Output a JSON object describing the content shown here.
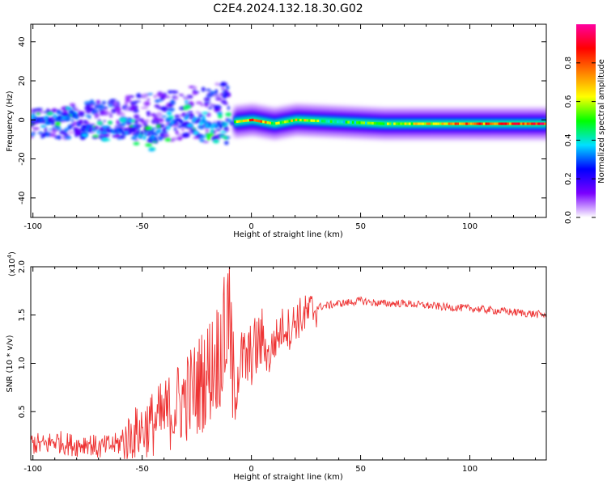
{
  "title": "C2E4.2024.132.18.30.G02",
  "chart_data": [
    {
      "type": "heatmap",
      "xlabel": "Height of straight line (km)",
      "ylabel": "Frequency (Hz)",
      "xlim": [
        -101,
        135
      ],
      "ylim": [
        -50,
        49
      ],
      "x_ticks": [
        -100,
        -50,
        0,
        50,
        100
      ],
      "y_ticks": [
        40,
        20,
        0,
        -20,
        -40
      ],
      "colorbar": {
        "label": "Normalized spectral amplitude",
        "range": [
          0.0,
          1.0
        ],
        "ticks": [
          0.0,
          0.2,
          0.4,
          0.6,
          0.8
        ],
        "tick_labels": [
          "0.0",
          "0.2",
          "0.4",
          "0.6",
          "0.8"
        ],
        "colors": [
          "#ffffff",
          "#7a00ff",
          "#0000ff",
          "#00e0ff",
          "#00ff00",
          "#ffff00",
          "#ff8000",
          "#ff0000",
          "#ff00a0"
        ]
      },
      "features": {
        "main_trace": [
          {
            "x": -101,
            "y": 0,
            "amp": 0.25
          },
          {
            "x": -92,
            "y": 0,
            "amp": 0.3
          },
          {
            "x": -82,
            "y": 3,
            "amp": 0.3
          },
          {
            "x": -75,
            "y": -6,
            "amp": 0.35
          },
          {
            "x": -60,
            "y": -5,
            "amp": 0.35
          },
          {
            "x": -45,
            "y": -9,
            "amp": 0.3
          },
          {
            "x": -30,
            "y": 2,
            "amp": 0.3
          },
          {
            "x": -18,
            "y": -3,
            "amp": 0.35
          },
          {
            "x": -8,
            "y": -1,
            "amp": 0.5
          },
          {
            "x": 0,
            "y": 0,
            "amp": 0.8
          },
          {
            "x": 10,
            "y": -2,
            "amp": 0.55
          },
          {
            "x": 20,
            "y": 0,
            "amp": 0.6
          },
          {
            "x": 40,
            "y": -1,
            "amp": 0.45
          },
          {
            "x": 60,
            "y": -2,
            "amp": 0.5
          },
          {
            "x": 80,
            "y": -2,
            "amp": 0.65
          },
          {
            "x": 100,
            "y": -2,
            "amp": 0.75
          },
          {
            "x": 120,
            "y": -2,
            "amp": 0.8
          },
          {
            "x": 135,
            "y": -2,
            "amp": 0.85
          }
        ],
        "scatter_region": {
          "x_range": [
            -101,
            -10
          ],
          "y_range": [
            -18,
            22
          ]
        }
      }
    },
    {
      "type": "line",
      "xlabel": "Height of straight line (km)",
      "ylabel": "SNR (10 * v/v)",
      "y_multiplier": "(x10",
      "y_multiplier_exp": "4",
      "y_multiplier_close": ")",
      "xlim": [
        -101,
        135
      ],
      "ylim": [
        0,
        2.0
      ],
      "x_ticks": [
        -100,
        -50,
        0,
        50,
        100
      ],
      "y_ticks": [
        0.5,
        1.0,
        1.5,
        2.0
      ],
      "y_tick_labels": [
        "0.5",
        "1.0",
        "1.5",
        "2.0"
      ],
      "color": "#ee3333",
      "series": [
        {
          "x": [
            -101,
            -95,
            -90,
            -85,
            -80,
            -75,
            -70,
            -65,
            -60,
            -55,
            -50,
            -45,
            -40,
            -35,
            -30,
            -25,
            -20,
            -15,
            -12,
            -10,
            -8,
            -6,
            -4,
            -2,
            0,
            2,
            5,
            8,
            10,
            12,
            15,
            18,
            20,
            25,
            30,
            35,
            40,
            45,
            50,
            55,
            60,
            70,
            80,
            90,
            100,
            110,
            120,
            130,
            135
          ],
          "y": [
            0.18,
            0.15,
            0.2,
            0.17,
            0.15,
            0.18,
            0.12,
            0.15,
            0.17,
            0.25,
            0.32,
            0.38,
            0.45,
            0.55,
            0.65,
            0.75,
            0.9,
            1.1,
            1.3,
            1.45,
            0.6,
            0.95,
            1.05,
            1.0,
            1.1,
            1.15,
            1.25,
            1.05,
            1.2,
            1.28,
            1.4,
            1.35,
            1.45,
            1.5,
            1.58,
            1.6,
            1.62,
            1.63,
            1.65,
            1.63,
            1.62,
            1.62,
            1.6,
            1.58,
            1.57,
            1.55,
            1.53,
            1.51,
            1.5
          ]
        }
      ]
    }
  ]
}
